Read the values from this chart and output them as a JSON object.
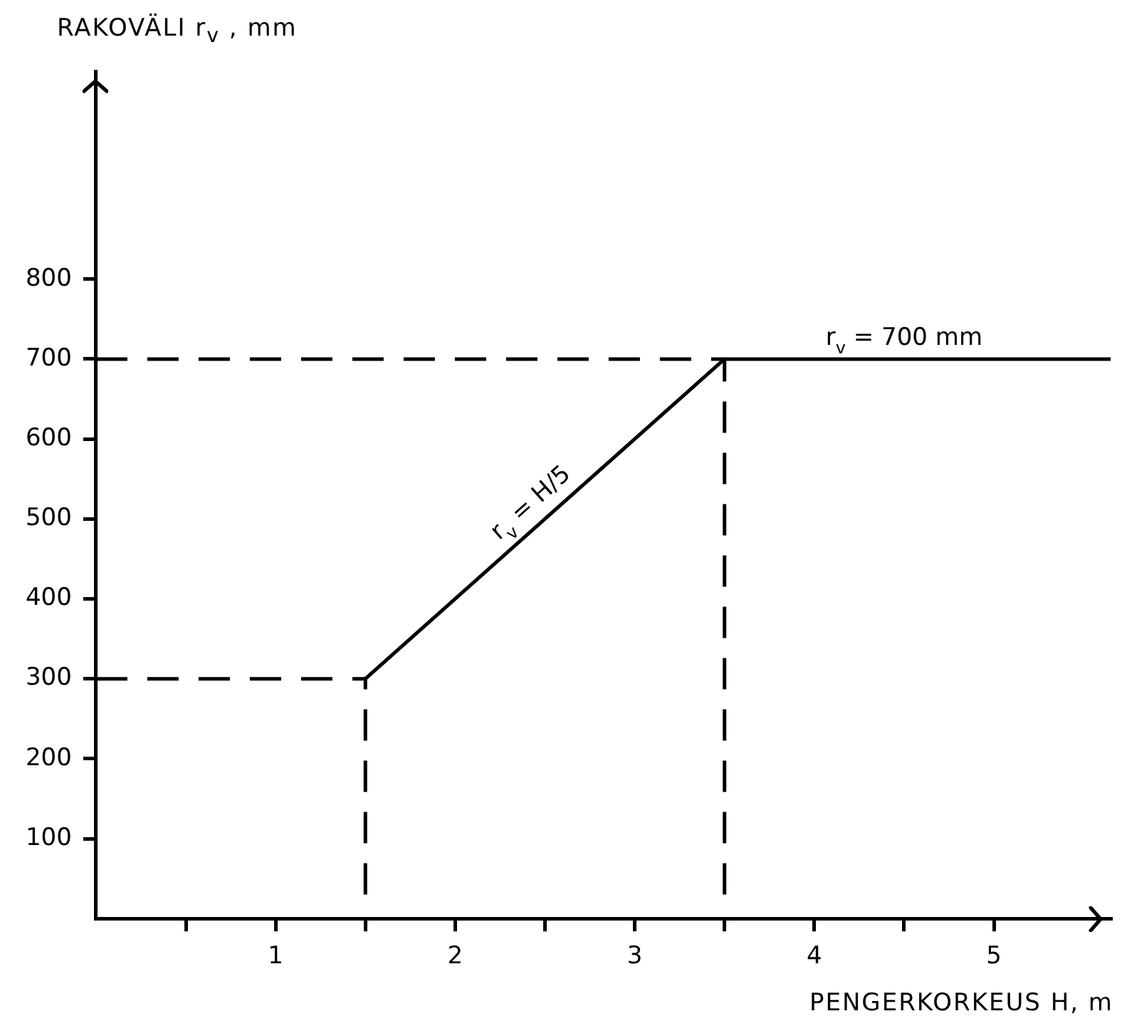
{
  "chart_data": {
    "type": "line",
    "xlabel": "PENGERKORKEUS  H, m",
    "ylabel": "RAKOVÄLI  r$_{v}$ , mm",
    "series": [
      {
        "type": "line",
        "color": "#000000",
        "line_style": "solid",
        "x": [
          1.5,
          3.5,
          5.65
        ],
        "values": [
          300,
          700,
          700
        ]
      },
      {
        "type": "line",
        "color": "#000000",
        "line_style": "dashed",
        "x": [
          0,
          1.5
        ],
        "values": [
          300,
          300
        ]
      },
      {
        "type": "line",
        "color": "#000000",
        "line_style": "dashed",
        "x": [
          0,
          3.5
        ],
        "values": [
          700,
          700
        ]
      },
      {
        "type": "line",
        "color": "#000000",
        "line_style": "dashed",
        "x": [
          1.5,
          1.5
        ],
        "values": [
          30,
          300
        ]
      },
      {
        "type": "line",
        "color": "#000000",
        "line_style": "dashed",
        "x": [
          3.5,
          3.5
        ],
        "values": [
          30,
          700
        ]
      }
    ],
    "xlim": [
      0,
      5.65
    ],
    "ylim": [
      0,
      1060
    ],
    "xticks": [
      {
        "value": 0.5,
        "label": null
      },
      1,
      {
        "value": 1.5,
        "label": null
      },
      2,
      {
        "value": 2.5,
        "label": null
      },
      3,
      {
        "value": 3.5,
        "label": null
      },
      4,
      {
        "value": 4.5,
        "label": null
      },
      5
    ],
    "yticks": [
      100,
      200,
      300,
      400,
      500,
      600,
      700,
      800
    ],
    "annotations": [
      {
        "text": "r$_{v}$ = H/5",
        "x": 2.5,
        "y": 500
      },
      {
        "text": "r$_{v}$ = 700 mm",
        "x": 4.5,
        "y": 700
      }
    ],
    "grid": false,
    "legend": false,
    "marker": "none"
  }
}
